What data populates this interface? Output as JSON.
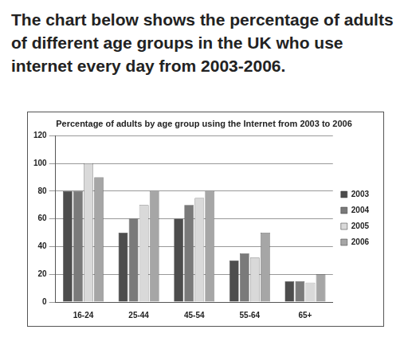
{
  "heading": "The chart below shows the percentage of adults of different age groups in the UK who use internet every day from 2003-2006.",
  "chart_data": {
    "type": "bar",
    "title": "Percentage of adults by age group using the Internet from 2003 to 2006",
    "categories": [
      "16-24",
      "25-44",
      "45-54",
      "55-64",
      "65+"
    ],
    "series": [
      {
        "name": "2003",
        "color": "#4d4d4d",
        "values": [
          80,
          50,
          60,
          30,
          15
        ]
      },
      {
        "name": "2004",
        "color": "#7a7a7a",
        "values": [
          80,
          60,
          70,
          35,
          15
        ]
      },
      {
        "name": "2005",
        "color": "#d9d9d9",
        "values": [
          100,
          70,
          75,
          32,
          14
        ]
      },
      {
        "name": "2006",
        "color": "#a6a6a6",
        "values": [
          90,
          80,
          80,
          50,
          20
        ]
      }
    ],
    "ylim": [
      0,
      120
    ],
    "yticks": [
      0,
      20,
      40,
      60,
      80,
      100,
      120
    ],
    "grid": true,
    "legend": "right"
  }
}
